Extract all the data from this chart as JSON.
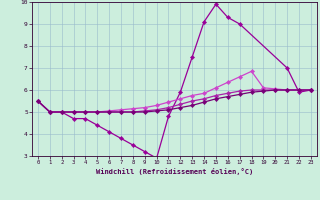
{
  "xlabel": "Windchill (Refroidissement éolien,°C)",
  "xlim": [
    -0.5,
    23.5
  ],
  "ylim": [
    3,
    10
  ],
  "xticks": [
    0,
    1,
    2,
    3,
    4,
    5,
    6,
    7,
    8,
    9,
    10,
    11,
    12,
    13,
    14,
    15,
    16,
    17,
    18,
    19,
    20,
    21,
    22,
    23
  ],
  "yticks": [
    3,
    4,
    5,
    6,
    7,
    8,
    9,
    10
  ],
  "bg_color": "#cceedd",
  "grid_color": "#99bbcc",
  "series": [
    {
      "x": [
        0,
        1,
        2,
        3,
        4,
        5,
        6,
        7,
        8,
        9,
        10,
        11,
        12,
        13,
        14,
        15,
        16,
        17,
        21,
        22,
        23
      ],
      "y": [
        5.5,
        5.0,
        5.0,
        4.7,
        4.7,
        4.4,
        4.1,
        3.8,
        3.5,
        3.2,
        2.9,
        4.8,
        5.9,
        7.5,
        9.1,
        9.9,
        9.3,
        9.0,
        7.0,
        5.9,
        6.0
      ],
      "color": "#990099",
      "linewidth": 0.9,
      "marker": "D",
      "markersize": 2.2
    },
    {
      "x": [
        0,
        1,
        2,
        3,
        4,
        5,
        6,
        7,
        8,
        9,
        10,
        11,
        12,
        13,
        14,
        15,
        16,
        17,
        18,
        19,
        20,
        21,
        22,
        23
      ],
      "y": [
        5.5,
        5.0,
        5.0,
        5.0,
        5.0,
        5.0,
        5.05,
        5.1,
        5.15,
        5.2,
        5.3,
        5.45,
        5.6,
        5.75,
        5.85,
        6.1,
        6.35,
        6.6,
        6.85,
        6.1,
        6.05,
        6.0,
        6.0,
        6.0
      ],
      "color": "#cc44cc",
      "linewidth": 0.9,
      "marker": "D",
      "markersize": 2.2
    },
    {
      "x": [
        0,
        1,
        2,
        3,
        4,
        5,
        6,
        7,
        8,
        9,
        10,
        11,
        12,
        13,
        14,
        15,
        16,
        17,
        18,
        19,
        20,
        21,
        22,
        23
      ],
      "y": [
        5.5,
        5.0,
        5.0,
        5.0,
        5.0,
        5.0,
        5.0,
        5.0,
        5.0,
        5.05,
        5.1,
        5.2,
        5.35,
        5.5,
        5.6,
        5.75,
        5.85,
        5.95,
        6.0,
        6.0,
        6.0,
        6.0,
        6.0,
        6.0
      ],
      "color": "#aa22aa",
      "linewidth": 0.9,
      "marker": "D",
      "markersize": 2.2
    },
    {
      "x": [
        0,
        1,
        2,
        3,
        4,
        5,
        6,
        7,
        8,
        9,
        10,
        11,
        12,
        13,
        14,
        15,
        16,
        17,
        18,
        19,
        20,
        21,
        22,
        23
      ],
      "y": [
        5.5,
        5.0,
        5.0,
        5.0,
        5.0,
        5.0,
        5.0,
        5.0,
        5.0,
        5.0,
        5.05,
        5.1,
        5.2,
        5.3,
        5.45,
        5.6,
        5.7,
        5.8,
        5.9,
        5.95,
        6.0,
        6.0,
        6.0,
        6.0
      ],
      "color": "#770077",
      "linewidth": 0.9,
      "marker": "D",
      "markersize": 2.2
    }
  ]
}
